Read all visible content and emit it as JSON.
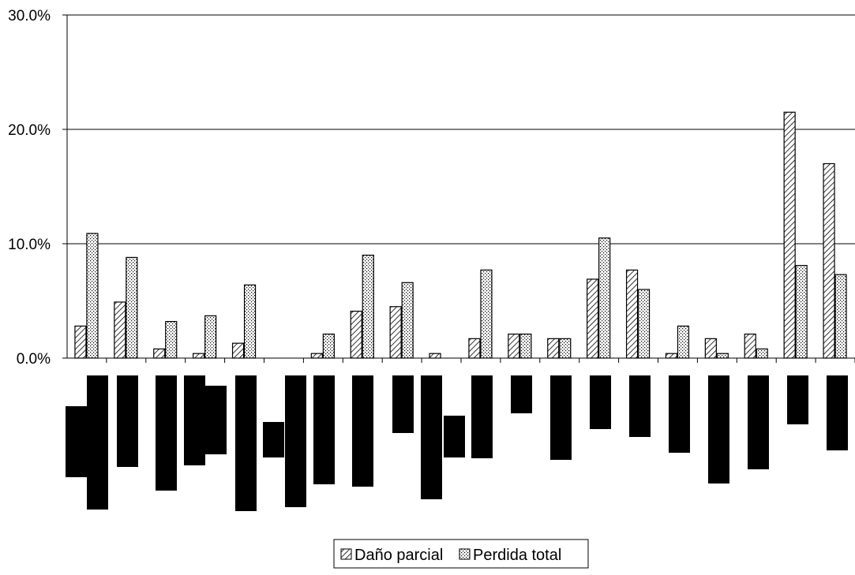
{
  "chart_data": {
    "type": "bar",
    "categories": [
      "",
      "",
      "",
      "",
      "",
      "",
      "",
      "",
      "",
      "",
      "",
      "",
      "",
      "",
      "",
      "",
      "",
      "",
      ""
    ],
    "ylim": [
      0,
      0.3
    ],
    "yticks": [
      "0.0%",
      "10.0%",
      "20.0%",
      "30.0%"
    ],
    "grid": true,
    "legend_position": "bottom",
    "series": [
      {
        "name": "Daño parcial",
        "pattern": "diagonal-hatch",
        "values": [
          0.028,
          0.049,
          0.008,
          0.004,
          0.013,
          0.0,
          0.004,
          0.041,
          0.045,
          0.004,
          0.017,
          0.021,
          0.017,
          0.069,
          0.077,
          0.004,
          0.017,
          0.021,
          0.215
        ]
      },
      {
        "name": "Perdida total",
        "pattern": "dotted",
        "values": [
          0.109,
          0.088,
          0.032,
          0.037,
          0.064,
          0.0,
          0.021,
          0.09,
          0.066,
          0.0,
          0.077,
          0.021,
          0.017,
          0.105,
          0.06,
          0.028,
          0.004,
          0.008,
          0.081
        ]
      }
    ],
    "extra_group": {
      "values": [
        0.17,
        0.073
      ]
    },
    "redacted_labels": true
  },
  "colors": {
    "axis": "#000000",
    "grid": "#000000",
    "background": "#ffffff",
    "redaction": "#000000"
  }
}
